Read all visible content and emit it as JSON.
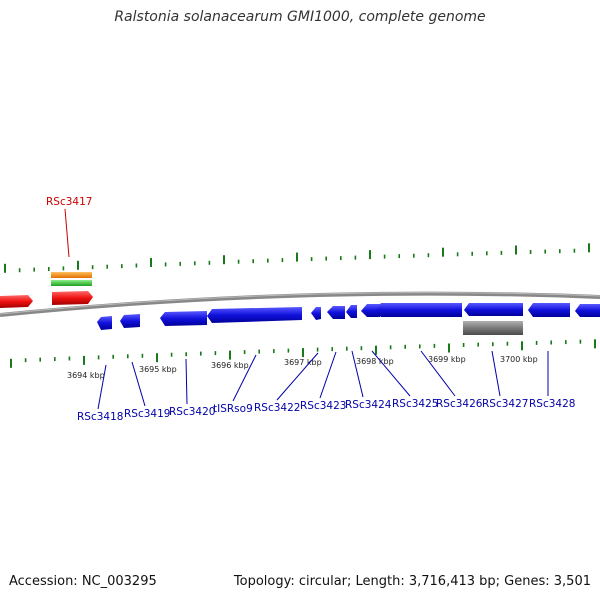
{
  "title": "Ralstonia solanacearum GMI1000, complete genome",
  "footer": {
    "accession": "Accession: NC_003295",
    "summary": "Topology: circular; Length: 3,716,413 bp; Genes: 3,501"
  },
  "colors": {
    "forward_gene": "#ee1111",
    "reverse_gene": "#1111dd",
    "ticks": "#1a7a1a",
    "backbone": "#777777",
    "feature_orange": "#ff8c00",
    "feature_green": "#33cc33",
    "feature_gray": "#7a7a7a",
    "label_forward": "#cc0000",
    "label_reverse": "#0000aa"
  },
  "kbp_labels": [
    "3694 kbp",
    "3695 kbp",
    "3696 kbp",
    "3697 kbp",
    "3698 kbp",
    "3699 kbp",
    "3700 kbp"
  ],
  "forward_genes": [
    {
      "label": "RSc3417"
    }
  ],
  "reverse_genes": [
    {
      "label": "RSc3418"
    },
    {
      "label": "RSc3419"
    },
    {
      "label": "RSc3420"
    },
    {
      "label": "tISRso9"
    },
    {
      "label": "RSc3422"
    },
    {
      "label": "RSc3423"
    },
    {
      "label": "RSc3424"
    },
    {
      "label": "RSc3425"
    },
    {
      "label": "RSc3426"
    },
    {
      "label": "RSc3427"
    },
    {
      "label": "RSc3428"
    }
  ]
}
